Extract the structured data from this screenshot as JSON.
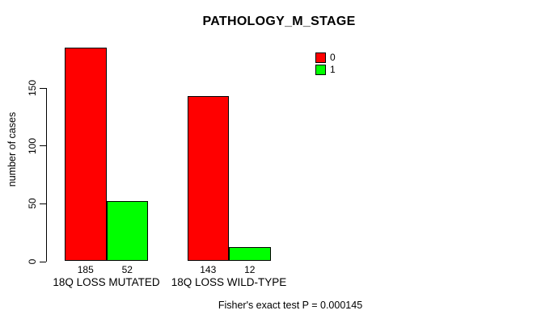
{
  "chart_data": {
    "type": "bar",
    "title": "PATHOLOGY_M_STAGE",
    "ylabel": "number of cases",
    "xlabel": "",
    "ylim": [
      0,
      185
    ],
    "yticks": [
      0,
      50,
      100,
      150
    ],
    "categories": [
      "18Q LOSS MUTATED",
      "18Q LOSS WILD-TYPE"
    ],
    "series": [
      {
        "name": "0",
        "color": "#FF0000",
        "values": [
          185,
          143
        ]
      },
      {
        "name": "1",
        "color": "#00FF00",
        "values": [
          52,
          12
        ]
      }
    ],
    "bar_value_labels": [
      [
        "185",
        "52"
      ],
      [
        "143",
        "12"
      ]
    ],
    "legend_position": "top-right",
    "grid": false,
    "footer": "Fisher's exact test P = 0.000145"
  }
}
